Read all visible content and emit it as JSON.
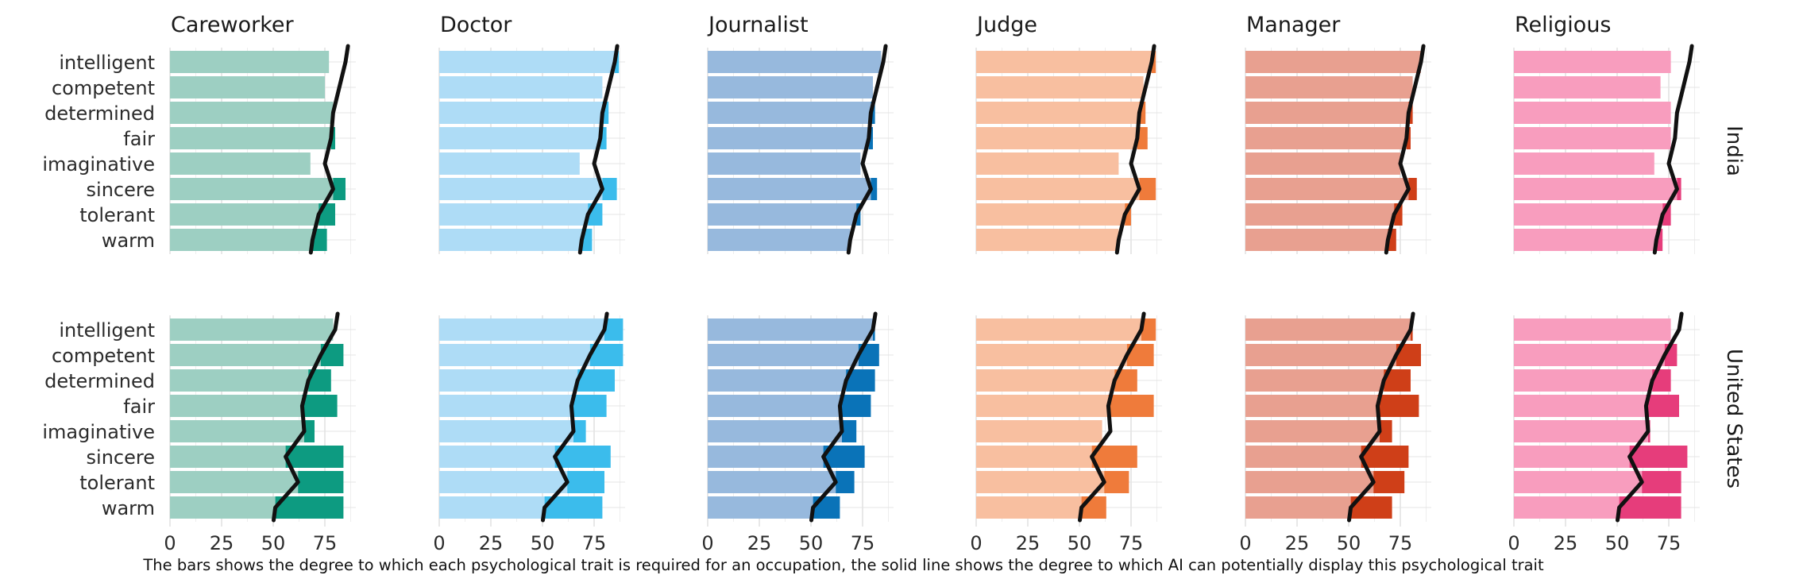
{
  "chart_data": {
    "type": "bar",
    "caption": "The bars shows the degree to which each psychological trait is required for an occupation, the solid line shows the degree to which AI can potentially display this psychological trait",
    "traits": [
      "intelligent",
      "competent",
      "determined",
      "fair",
      "imaginative",
      "sincere",
      "tolerant",
      "warm"
    ],
    "x_ticks": [
      "0",
      "25",
      "50",
      "75"
    ],
    "xlim": [
      0,
      90
    ],
    "occupations": [
      "Careworker",
      "Doctor",
      "Journalist",
      "Judge",
      "Manager",
      "Religious"
    ],
    "countries": [
      "India",
      "United States"
    ],
    "colors": {
      "Careworker": {
        "light": "#9dcfc2",
        "dark": "#0d9b81"
      },
      "Doctor": {
        "light": "#aedcf6",
        "dark": "#3bbcec"
      },
      "Journalist": {
        "light": "#97b9dd",
        "dark": "#0a73b8"
      },
      "Judge": {
        "light": "#f8bfa0",
        "dark": "#ef7b3b"
      },
      "Manager": {
        "light": "#e8a090",
        "dark": "#cf3f18"
      },
      "Religious": {
        "light": "#f89dbe",
        "dark": "#e63d7b"
      }
    },
    "ai_line": {
      "India": [
        85,
        82,
        79,
        78,
        75,
        79,
        72,
        69
      ],
      "United States": [
        80,
        73,
        67,
        64,
        65,
        56,
        62,
        51
      ]
    },
    "trait_required": {
      "India": {
        "Careworker": [
          77,
          75,
          79,
          80,
          68,
          85,
          80,
          76
        ],
        "Doctor": [
          87,
          79,
          82,
          81,
          68,
          86,
          79,
          74
        ],
        "Journalist": [
          84,
          80,
          81,
          80,
          74,
          82,
          74,
          69
        ],
        "Judge": [
          87,
          81,
          82,
          83,
          69,
          87,
          75,
          69
        ],
        "Manager": [
          85,
          81,
          81,
          80,
          75,
          83,
          76,
          73
        ],
        "Religious": [
          76,
          71,
          76,
          76,
          68,
          81,
          76,
          72
        ]
      },
      "United States": {
        "Careworker": [
          79,
          84,
          78,
          81,
          70,
          84,
          84,
          84
        ],
        "Doctor": [
          89,
          89,
          85,
          81,
          71,
          83,
          80,
          79
        ],
        "Journalist": [
          81,
          83,
          81,
          79,
          72,
          76,
          71,
          64
        ],
        "Judge": [
          87,
          86,
          78,
          86,
          61,
          78,
          74,
          63
        ],
        "Manager": [
          81,
          85,
          80,
          84,
          71,
          79,
          77,
          71
        ],
        "Religious": [
          76,
          79,
          76,
          80,
          66,
          84,
          81,
          81
        ]
      }
    }
  }
}
